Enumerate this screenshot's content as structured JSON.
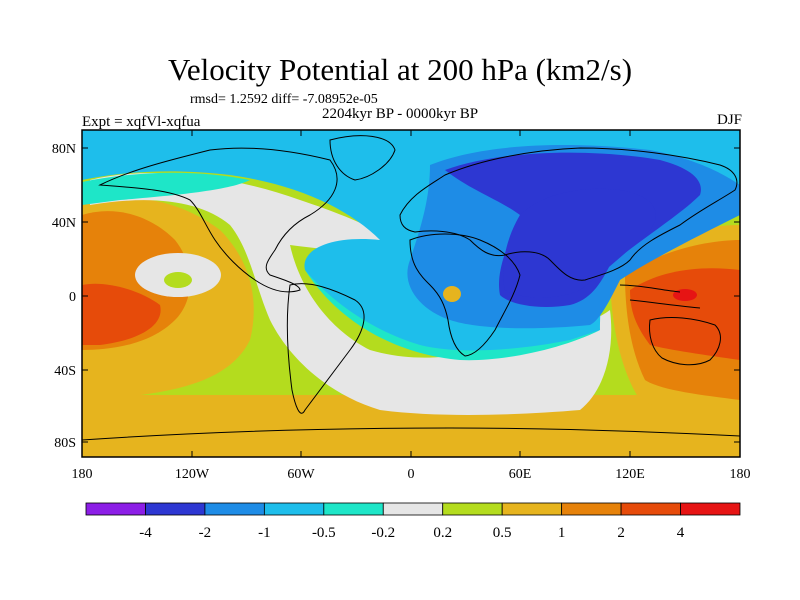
{
  "title": "Velocity Potential at 200 hPa (km2/s)",
  "stats": "rmsd= 1.2592 diff= -7.08952e-05",
  "period": "2204kyr BP - 0000kyr BP",
  "expt": "Expt = xqfVl-xqfua",
  "season": "DJF",
  "lat_labels": [
    "80N",
    "40N",
    "0",
    "40S",
    "80S"
  ],
  "lon_labels": [
    "180",
    "120W",
    "60W",
    "0",
    "60E",
    "120E",
    "180"
  ],
  "colorbar": {
    "labels": [
      "-4",
      "-2",
      "-1",
      "-0.5",
      "-0.2",
      "0.2",
      "0.5",
      "1",
      "2",
      "4"
    ],
    "colors": [
      "#8c1ee6",
      "#2d37d2",
      "#1e8ce6",
      "#1ebeeb",
      "#1ee6c8",
      "#e6e6e6",
      "#b4dc1e",
      "#e6b41e",
      "#e6820a",
      "#e64b0a",
      "#e61414"
    ]
  }
}
